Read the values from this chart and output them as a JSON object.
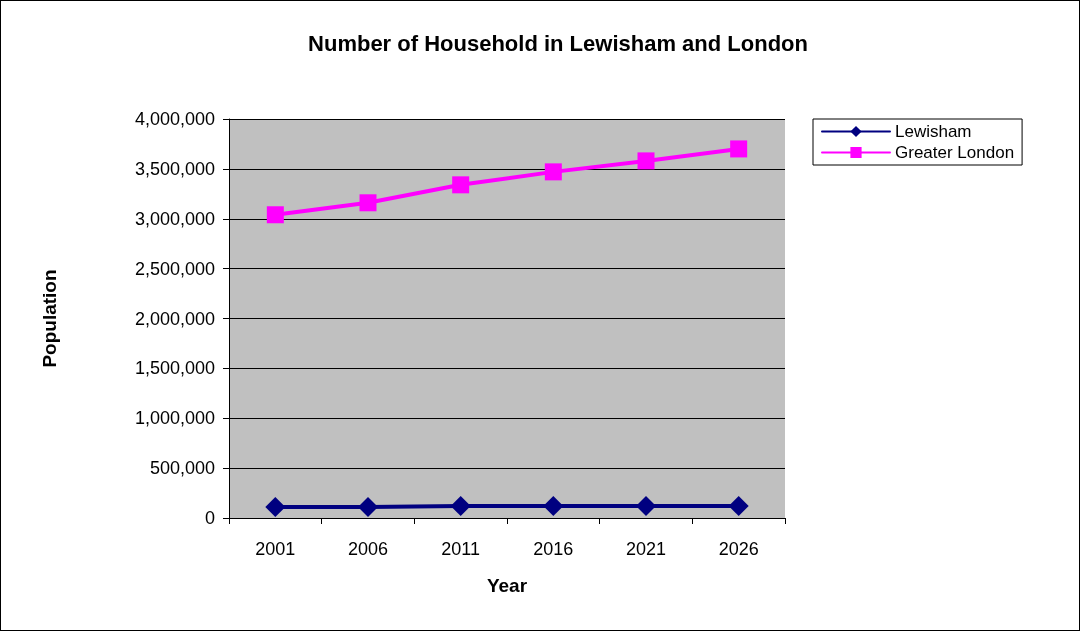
{
  "chart_data": {
    "type": "line",
    "title": "Number of Household in Lewisham and London",
    "xlabel": "Year",
    "ylabel": "Population",
    "categories": [
      "2001",
      "2006",
      "2011",
      "2016",
      "2021",
      "2026"
    ],
    "series": [
      {
        "name": "Lewisham",
        "color": "#000080",
        "values": [
          110000,
          110000,
          120000,
          120000,
          120000,
          120000
        ],
        "marker": "diamond"
      },
      {
        "name": "Greater London",
        "color": "#ff00ff",
        "values": [
          3040000,
          3160000,
          3340000,
          3470000,
          3580000,
          3700000
        ],
        "marker": "square"
      }
    ],
    "ylim": [
      0,
      4000000
    ],
    "yticks": [
      0,
      {
        "value": 500000,
        "label": "500,000"
      },
      {
        "value": 1000000,
        "label": "1,000,000"
      },
      {
        "value": 1500000,
        "label": "1,500,000"
      },
      {
        "value": 2000000,
        "label": "2,000,000"
      },
      {
        "value": 2500000,
        "label": "2,500,000"
      },
      {
        "value": 3000000,
        "label": "3,000,000"
      },
      {
        "value": 3500000,
        "label": "3,500,000"
      },
      {
        "value": 4000000,
        "label": "4,000,000"
      }
    ],
    "grid": "y",
    "legend": "right",
    "line_style": "solid"
  }
}
